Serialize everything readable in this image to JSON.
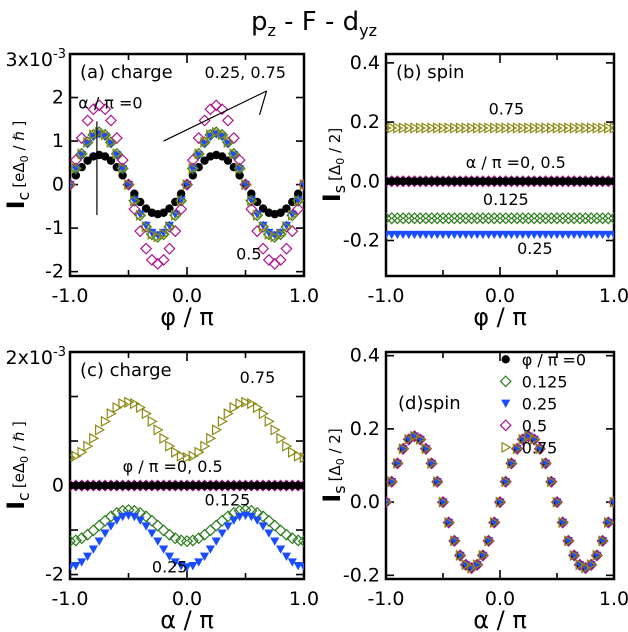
{
  "figure_title": {
    "main": "p",
    "s1": "z",
    "mid": " - F - d",
    "s2": "yz"
  },
  "chart_data": [
    {
      "id": "a",
      "type": "scatter",
      "panel_label": "(a) charge",
      "xlabel": "φ / π",
      "ylabel": {
        "main": "I",
        "sub": "c",
        "unit": "[eΔ",
        "unit_sub": "0",
        "unit_rest": " / ℏ ]"
      },
      "xlim": [
        -1.0,
        1.0
      ],
      "ylim": [
        -2.1,
        3.0
      ],
      "xticks": [
        -1.0,
        -0.5,
        0.0,
        0.5,
        1.0
      ],
      "xtick_labels": [
        "-1.0",
        "",
        "0.0",
        "",
        "1.0"
      ],
      "yticks": [
        -2,
        -1,
        0,
        1,
        2,
        3
      ],
      "ytick_labels": [
        "-2",
        "-1",
        "0",
        "1",
        "2",
        ""
      ],
      "y_multiplier": {
        "base": "3x10",
        "exp": "-3"
      },
      "series": [
        {
          "name": "α/π=0",
          "marker": "filled-circle",
          "color": "#000000",
          "form": {
            "kind": "sin",
            "amplitude": 0.68,
            "freq": 2
          }
        },
        {
          "name": "0.125",
          "marker": "open-diamond",
          "color": "#2e7d1f",
          "form": {
            "kind": "sin",
            "amplitude": 1.2,
            "freq": 2
          }
        },
        {
          "name": "0.25",
          "marker": "filled-triangle-down",
          "color": "#1a4dff",
          "form": {
            "kind": "sin",
            "amplitude": 1.16,
            "freq": 2
          }
        },
        {
          "name": "0.5",
          "marker": "open-diamond",
          "color": "#b0148c",
          "form": {
            "kind": "sin",
            "amplitude": 1.82,
            "freq": 2
          }
        },
        {
          "name": "0.75",
          "marker": "open-triangle-right",
          "color": "#8c8a14",
          "form": {
            "kind": "sin",
            "amplitude": 1.2,
            "freq": 2
          }
        }
      ],
      "annotations": [
        {
          "text": "α / π =0",
          "x": -0.93,
          "y": 1.75
        },
        {
          "text": "0.25, 0.75",
          "x": 0.15,
          "y": 2.45
        },
        {
          "text": "0.5",
          "x": 0.42,
          "y": -1.72
        }
      ]
    },
    {
      "id": "b",
      "type": "scatter",
      "panel_label": "(b) spin",
      "xlabel": "φ / π",
      "ylabel": {
        "main": "I",
        "sub": "s",
        "unit": "[Δ",
        "unit_sub": "0",
        "unit_rest": " / 2]"
      },
      "xlim": [
        -1.0,
        1.0
      ],
      "ylim": [
        -0.32,
        0.43
      ],
      "xticks": [
        -1.0,
        -0.5,
        0.0,
        0.5,
        1.0
      ],
      "xtick_labels": [
        "-1.0",
        "",
        "0.0",
        "",
        "1.0"
      ],
      "yticks": [
        -0.2,
        0.0,
        0.2,
        0.4
      ],
      "ytick_labels": [
        "-0.2",
        "0.0",
        "0.2",
        "0.4"
      ],
      "series": [
        {
          "name": "0.75",
          "marker": "open-triangle-right",
          "color": "#8c8a14",
          "form": {
            "kind": "const",
            "value": 0.18
          }
        },
        {
          "name": "α/π=0, 0.5",
          "marker": "open-diamond",
          "color": "#b0148c",
          "form": {
            "kind": "const",
            "value": 0.0
          }
        },
        {
          "name": "α/π=0",
          "marker": "filled-circle",
          "color": "#000000",
          "form": {
            "kind": "const",
            "value": 0.0
          }
        },
        {
          "name": "0.125",
          "marker": "open-diamond",
          "color": "#2e7d1f",
          "form": {
            "kind": "const",
            "value": -0.125
          }
        },
        {
          "name": "0.25",
          "marker": "filled-triangle-down",
          "color": "#1a4dff",
          "form": {
            "kind": "const",
            "value": -0.18
          }
        }
      ],
      "annotations": [
        {
          "text": "0.75",
          "x": -0.1,
          "y": 0.225
        },
        {
          "text": "α / π =0, 0.5",
          "x": -0.3,
          "y": 0.045
        },
        {
          "text": "0.125",
          "x": -0.15,
          "y": -0.08
        },
        {
          "text": "0.25",
          "x": 0.15,
          "y": -0.245
        }
      ]
    },
    {
      "id": "c",
      "type": "scatter",
      "panel_label": "(c) charge",
      "xlabel": "α / π",
      "ylabel": {
        "main": "I",
        "sub": "c",
        "unit": "[eΔ",
        "unit_sub": "0",
        "unit_rest": " / ℏ ]"
      },
      "xlim": [
        -1.0,
        1.0
      ],
      "ylim": [
        -2.1,
        3.0
      ],
      "xticks": [
        -1.0,
        -0.5,
        0.0,
        0.5,
        1.0
      ],
      "xtick_labels": [
        "-1.0",
        "",
        "0.0",
        "",
        "1.0"
      ],
      "yticks": [
        -2,
        -1,
        0,
        1,
        2,
        3
      ],
      "ytick_labels": [
        "-2",
        "",
        "0",
        "",
        "",
        ""
      ],
      "y_multiplier": {
        "base": "2x10",
        "exp": "-3"
      },
      "series": [
        {
          "name": "0.75",
          "marker": "open-triangle-right",
          "color": "#8c8a14",
          "form": {
            "kind": "shift-cos",
            "offset": 1.25,
            "amplitude": 0.62,
            "freq": 2
          }
        },
        {
          "name": "φ/π=0, 0.5",
          "marker": "open-diamond",
          "color": "#b0148c",
          "form": {
            "kind": "const",
            "value": 0.0
          }
        },
        {
          "name": "φ/π=0",
          "marker": "filled-circle",
          "color": "#000000",
          "form": {
            "kind": "const",
            "value": 0.0
          }
        },
        {
          "name": "0.125",
          "marker": "open-diamond",
          "color": "#2e7d1f",
          "form": {
            "kind": "shift-cos",
            "offset": -0.9,
            "amplitude": 0.35,
            "freq": 2
          }
        },
        {
          "name": "0.25",
          "marker": "filled-triangle-down",
          "color": "#1a4dff",
          "form": {
            "kind": "shift-cos",
            "offset": -1.25,
            "amplitude": 0.58,
            "freq": 2
          }
        }
      ],
      "annotations": [
        {
          "text": "0.75",
          "x": 0.45,
          "y": 2.3
        },
        {
          "text": "φ / π =0, 0.5",
          "x": -0.55,
          "y": 0.3
        },
        {
          "text": "0.125",
          "x": 0.15,
          "y": -0.45
        },
        {
          "text": "0.25",
          "x": -0.3,
          "y": -1.95
        }
      ]
    },
    {
      "id": "d",
      "type": "scatter",
      "panel_label": "(d)spin",
      "xlabel": "α / π",
      "ylabel": {
        "main": "I",
        "sub": "s",
        "unit": "[Δ",
        "unit_sub": "0",
        "unit_rest": " / 2]"
      },
      "xlim": [
        -1.0,
        1.0
      ],
      "ylim": [
        -0.21,
        0.41
      ],
      "xticks": [
        -1.0,
        -0.5,
        0.0,
        0.5,
        1.0
      ],
      "xtick_labels": [
        "-1.0",
        "",
        "0.0",
        "",
        "1.0"
      ],
      "yticks": [
        -0.2,
        0.0,
        0.2,
        0.4
      ],
      "ytick_labels": [
        "-0.2",
        "0.0",
        "0.2",
        "0.4"
      ],
      "legend_title": "φ / π =0",
      "legend": [
        "φ / π =0",
        "0.125",
        "0.25",
        "0.5",
        "0.75"
      ],
      "series": [
        {
          "name": "φ/π=0",
          "marker": "filled-circle",
          "color": "#000000",
          "form": {
            "kind": "sin",
            "amplitude": 0.18,
            "freq": 2
          }
        },
        {
          "name": "0.125",
          "marker": "open-diamond",
          "color": "#2e7d1f",
          "form": {
            "kind": "sin",
            "amplitude": 0.18,
            "freq": 2
          }
        },
        {
          "name": "0.25",
          "marker": "filled-triangle-down",
          "color": "#1a4dff",
          "form": {
            "kind": "sin",
            "amplitude": 0.18,
            "freq": 2
          }
        },
        {
          "name": "0.5",
          "marker": "open-diamond",
          "color": "#b0148c",
          "form": {
            "kind": "sin",
            "amplitude": 0.18,
            "freq": 2
          }
        },
        {
          "name": "0.75",
          "marker": "open-triangle-right",
          "color": "#8c8a14",
          "form": {
            "kind": "sin",
            "amplitude": 0.18,
            "freq": 2
          }
        }
      ]
    }
  ]
}
